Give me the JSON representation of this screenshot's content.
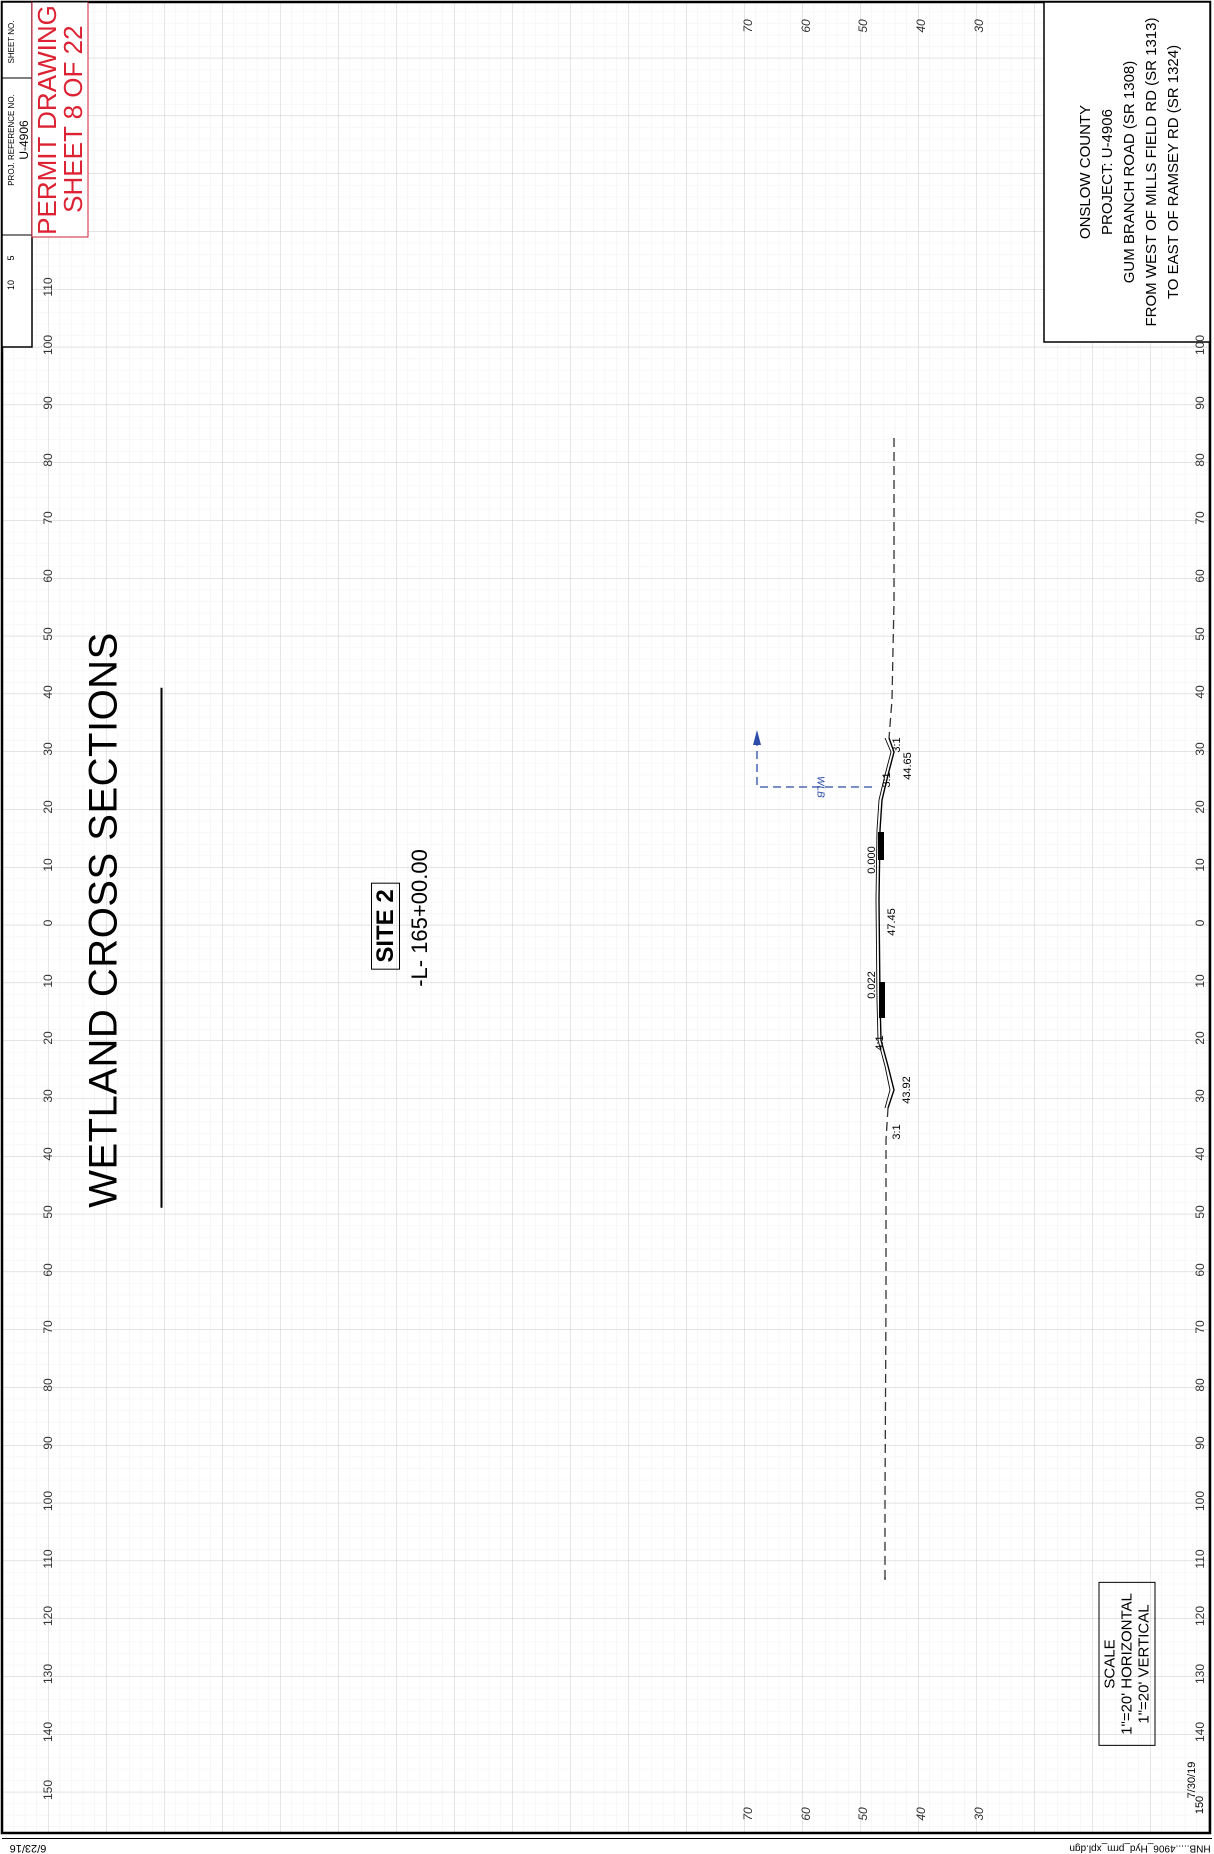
{
  "title": "WETLAND CROSS SECTIONS",
  "site": "SITE 2",
  "station": "-L- 165+00.00",
  "project_block": {
    "county": "ONSLOW COUNTY",
    "project": "PROJECT: U-4906",
    "road": "GUM BRANCH ROAD (SR 1308)",
    "from": "FROM WEST OF MILLS FIELD RD (SR 1313)",
    "to": "TO EAST OF RAMSEY RD (SR 1324)"
  },
  "title_block": {
    "proj_ref_label": "PROJ. REFERENCE NO.",
    "proj_ref_value": "U-4906",
    "sheet_no_label": "SHEET NO.",
    "permit_line1": "PERMIT DRAWING",
    "permit_line2": "SHEET 8 OF 22",
    "scale_5": "5",
    "scale_10": "10"
  },
  "scale": {
    "heading": "SCALE",
    "horizontal": "1\"=20' HORIZONTAL",
    "vertical": "1\"=20' VERTICAL"
  },
  "offset_ticks": [
    "110",
    "100",
    "90",
    "80",
    "70",
    "60",
    "50",
    "40",
    "30",
    "20",
    "10",
    "0",
    "10",
    "20",
    "30",
    "40",
    "50",
    "60",
    "70",
    "80",
    "90",
    "100",
    "110",
    "120",
    "130",
    "140",
    "150"
  ],
  "elevation_ticks": [
    "70",
    "60",
    "50",
    "40",
    "30"
  ],
  "annotations": {
    "slope_left_upper": "3:1",
    "slope_right_upper": "3:1",
    "width_upper": "44.65",
    "grade_upper": "0.000",
    "centre_width": "47.45",
    "grade_lower": "0.022",
    "slope_left_lower": "4:1",
    "width_lower": "43.92",
    "slope_right_lower": "3:1",
    "wlb": "WLB"
  },
  "date_right": "7/30/19",
  "tick_150_right": "150",
  "date_left": "6/23/16",
  "filename": "HNB.....4906_Hyd_prm_xpl.dgn",
  "colors": {
    "permit_red": "#d22233",
    "wlb_blue": "#2c4da8",
    "grid": "#d8d8d8"
  }
}
